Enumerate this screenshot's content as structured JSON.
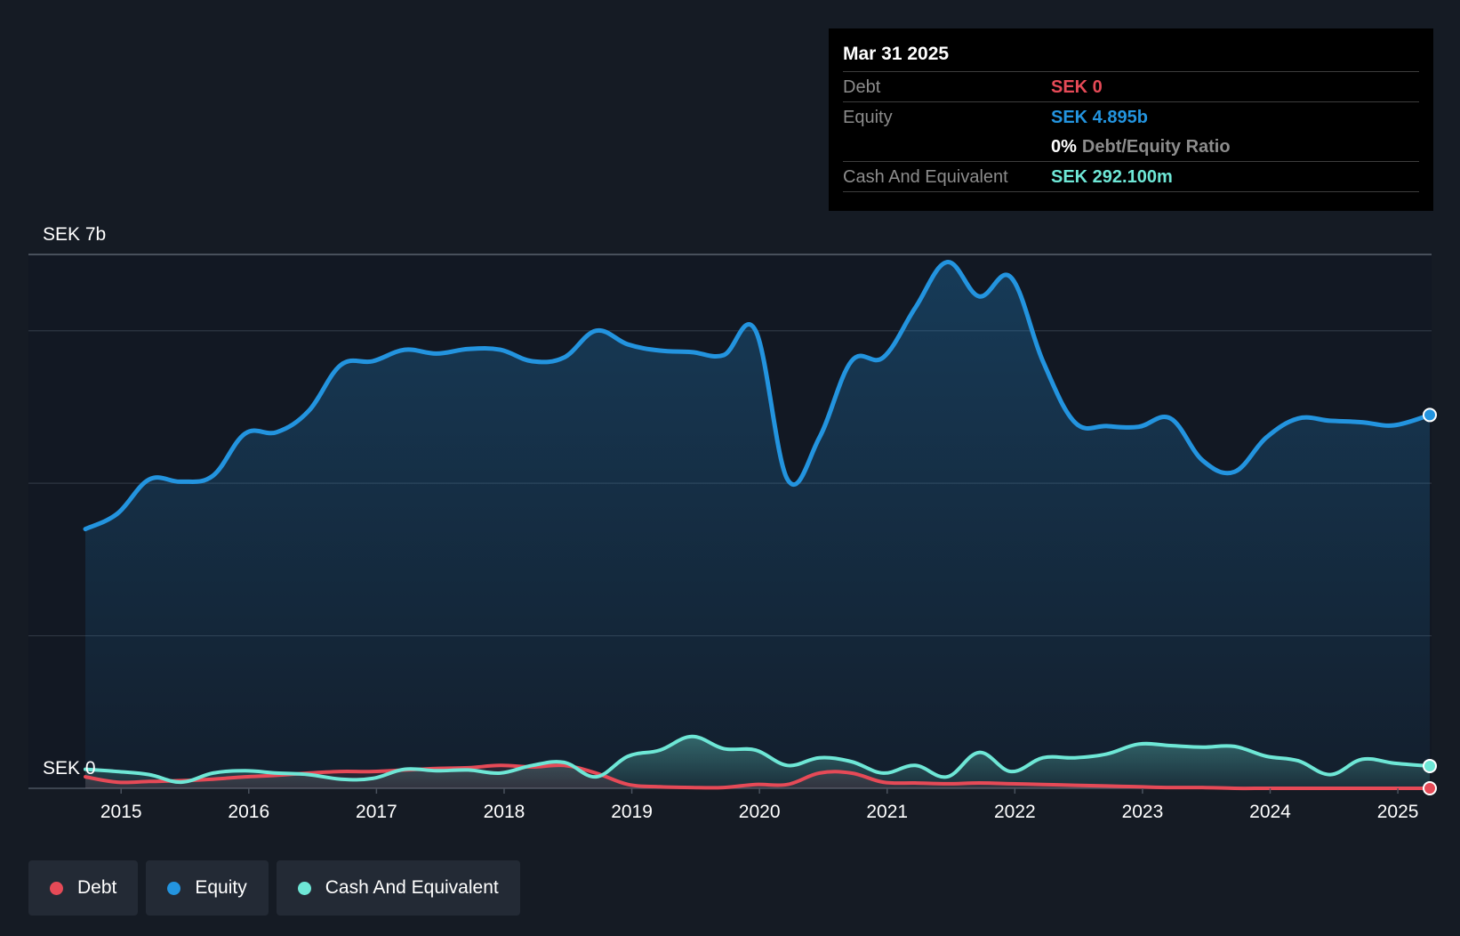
{
  "tooltip": {
    "date": "Mar 31 2025",
    "debt_label": "Debt",
    "debt_value": "SEK 0",
    "equity_label": "Equity",
    "equity_value": "SEK 4.895b",
    "ratio_pct": "0%",
    "ratio_label": "Debt/Equity Ratio",
    "cash_label": "Cash And Equivalent",
    "cash_value": "SEK 292.100m"
  },
  "legend": {
    "debt": "Debt",
    "equity": "Equity",
    "cash": "Cash And Equivalent"
  },
  "colors": {
    "background": "#151b24",
    "debt": "#e64a57",
    "equity": "#2394df",
    "cash": "#6ee7d6",
    "grid": "#2e3642"
  },
  "chart_data": {
    "type": "area",
    "title": "",
    "xlabel": "",
    "ylabel": "",
    "ylim": [
      0,
      7
    ],
    "y_unit": "SEK b",
    "y_tick_labels": [
      "SEK 0",
      "SEK 7b"
    ],
    "y_gridlines": [
      0,
      2,
      4,
      6,
      7
    ],
    "x_ticks": [
      2015,
      2016,
      2017,
      2018,
      2019,
      2020,
      2021,
      2022,
      2023,
      2024,
      2025
    ],
    "x_tick_labels": [
      "2015",
      "2016",
      "2017",
      "2018",
      "2019",
      "2020",
      "2021",
      "2022",
      "2023",
      "2024",
      "2025"
    ],
    "xlim": [
      2014.72,
      2025.25
    ],
    "series": [
      {
        "name": "Equity",
        "x": [
          2014.72,
          2014.97,
          2015.22,
          2015.47,
          2015.72,
          2015.97,
          2016.22,
          2016.47,
          2016.72,
          2016.97,
          2017.22,
          2017.47,
          2017.72,
          2017.97,
          2018.22,
          2018.47,
          2018.72,
          2018.97,
          2019.22,
          2019.47,
          2019.72,
          2019.97,
          2020.22,
          2020.47,
          2020.72,
          2020.97,
          2021.22,
          2021.47,
          2021.72,
          2021.97,
          2022.22,
          2022.47,
          2022.72,
          2022.97,
          2023.22,
          2023.47,
          2023.72,
          2023.97,
          2024.22,
          2024.47,
          2024.72,
          2024.97,
          2025.25
        ],
        "values": [
          3.4,
          3.6,
          4.05,
          4.02,
          4.1,
          4.65,
          4.67,
          4.95,
          5.55,
          5.6,
          5.75,
          5.7,
          5.76,
          5.75,
          5.6,
          5.65,
          6.0,
          5.82,
          5.74,
          5.72,
          5.68,
          6.0,
          4.05,
          4.6,
          5.6,
          5.65,
          6.3,
          6.9,
          6.45,
          6.7,
          5.6,
          4.8,
          4.75,
          4.74,
          4.85,
          4.3,
          4.15,
          4.6,
          4.85,
          4.82,
          4.8,
          4.76,
          4.895
        ]
      },
      {
        "name": "Debt",
        "x": [
          2014.72,
          2014.97,
          2015.22,
          2015.47,
          2015.72,
          2015.97,
          2016.22,
          2016.47,
          2016.72,
          2016.97,
          2017.22,
          2017.47,
          2017.72,
          2017.97,
          2018.22,
          2018.47,
          2018.72,
          2018.97,
          2019.22,
          2019.47,
          2019.72,
          2019.97,
          2020.22,
          2020.47,
          2020.72,
          2020.97,
          2021.22,
          2021.47,
          2021.72,
          2021.97,
          2022.22,
          2022.47,
          2022.72,
          2022.97,
          2023.22,
          2023.47,
          2023.72,
          2023.97,
          2024.22,
          2024.47,
          2024.72,
          2024.97,
          2025.25
        ],
        "values": [
          0.15,
          0.08,
          0.09,
          0.1,
          0.12,
          0.15,
          0.17,
          0.2,
          0.22,
          0.22,
          0.24,
          0.26,
          0.27,
          0.3,
          0.28,
          0.3,
          0.2,
          0.05,
          0.02,
          0.01,
          0.01,
          0.05,
          0.05,
          0.2,
          0.2,
          0.08,
          0.07,
          0.06,
          0.07,
          0.06,
          0.05,
          0.04,
          0.03,
          0.02,
          0.01,
          0.01,
          0.0,
          0.0,
          0.0,
          0.0,
          0.0,
          0.0,
          0.0
        ]
      },
      {
        "name": "Cash And Equivalent",
        "x": [
          2014.72,
          2014.97,
          2015.22,
          2015.47,
          2015.72,
          2015.97,
          2016.22,
          2016.47,
          2016.72,
          2016.97,
          2017.22,
          2017.47,
          2017.72,
          2017.97,
          2018.22,
          2018.47,
          2018.72,
          2018.97,
          2019.22,
          2019.47,
          2019.72,
          2019.97,
          2020.22,
          2020.47,
          2020.72,
          2020.97,
          2021.22,
          2021.47,
          2021.72,
          2021.97,
          2022.22,
          2022.47,
          2022.72,
          2022.97,
          2023.22,
          2023.47,
          2023.72,
          2023.97,
          2024.22,
          2024.47,
          2024.72,
          2024.97,
          2025.25
        ],
        "values": [
          0.25,
          0.22,
          0.18,
          0.08,
          0.2,
          0.23,
          0.2,
          0.18,
          0.12,
          0.13,
          0.25,
          0.23,
          0.24,
          0.2,
          0.3,
          0.34,
          0.15,
          0.42,
          0.5,
          0.68,
          0.52,
          0.5,
          0.3,
          0.4,
          0.35,
          0.2,
          0.3,
          0.15,
          0.47,
          0.22,
          0.4,
          0.4,
          0.45,
          0.58,
          0.56,
          0.54,
          0.55,
          0.42,
          0.36,
          0.18,
          0.38,
          0.33,
          0.2921
        ]
      }
    ]
  }
}
